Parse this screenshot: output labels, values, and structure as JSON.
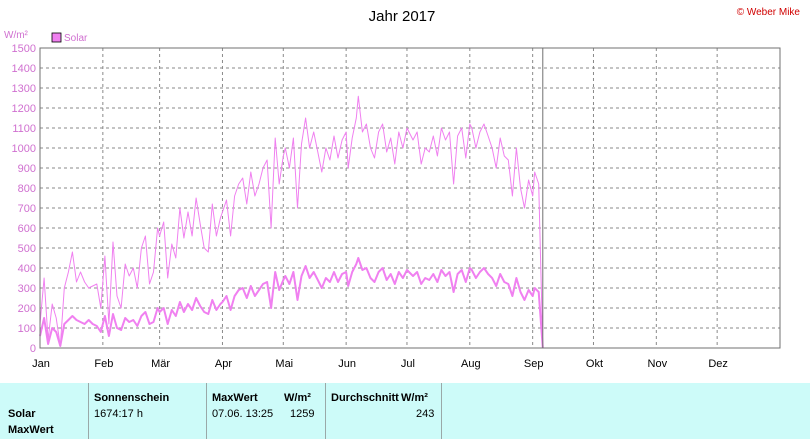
{
  "copyright": "© Weber Mike",
  "legend": {
    "label": "Solar",
    "color": "#f080f0"
  },
  "chart_data": {
    "type": "line",
    "title": "Jahr 2017",
    "ylabel": "W/m²",
    "ylim": [
      0,
      1500
    ],
    "yticks": [
      0,
      100,
      200,
      300,
      400,
      500,
      600,
      700,
      800,
      900,
      1000,
      1100,
      1200,
      1300,
      1400,
      1500
    ],
    "xlim_days": [
      1,
      366
    ],
    "months": [
      "Jan",
      "Feb",
      "Mär",
      "Apr",
      "Mai",
      "Jun",
      "Jul",
      "Aug",
      "Sep",
      "Okt",
      "Nov",
      "Dez"
    ],
    "grid": true,
    "line_color": "#f080f0",
    "cursor_day": 249,
    "series": [
      {
        "name": "Solar MaxWert",
        "unit": "W/m²",
        "points": [
          [
            1,
            120
          ],
          [
            3,
            350
          ],
          [
            5,
            40
          ],
          [
            7,
            220
          ],
          [
            9,
            150
          ],
          [
            11,
            10
          ],
          [
            13,
            300
          ],
          [
            15,
            380
          ],
          [
            17,
            480
          ],
          [
            19,
            330
          ],
          [
            21,
            380
          ],
          [
            23,
            330
          ],
          [
            25,
            300
          ],
          [
            27,
            310
          ],
          [
            29,
            320
          ],
          [
            31,
            200
          ],
          [
            33,
            460
          ],
          [
            35,
            120
          ],
          [
            37,
            530
          ],
          [
            39,
            260
          ],
          [
            41,
            200
          ],
          [
            43,
            420
          ],
          [
            45,
            360
          ],
          [
            47,
            400
          ],
          [
            49,
            300
          ],
          [
            51,
            500
          ],
          [
            53,
            560
          ],
          [
            55,
            320
          ],
          [
            57,
            380
          ],
          [
            59,
            600
          ],
          [
            60,
            560
          ],
          [
            62,
            630
          ],
          [
            64,
            350
          ],
          [
            66,
            520
          ],
          [
            68,
            450
          ],
          [
            70,
            700
          ],
          [
            72,
            550
          ],
          [
            74,
            680
          ],
          [
            76,
            560
          ],
          [
            78,
            750
          ],
          [
            80,
            620
          ],
          [
            82,
            500
          ],
          [
            84,
            480
          ],
          [
            86,
            720
          ],
          [
            88,
            560
          ],
          [
            90,
            650
          ],
          [
            91,
            680
          ],
          [
            93,
            740
          ],
          [
            95,
            560
          ],
          [
            97,
            760
          ],
          [
            99,
            820
          ],
          [
            101,
            850
          ],
          [
            103,
            720
          ],
          [
            105,
            880
          ],
          [
            107,
            760
          ],
          [
            109,
            820
          ],
          [
            111,
            900
          ],
          [
            113,
            940
          ],
          [
            115,
            600
          ],
          [
            117,
            1050
          ],
          [
            119,
            820
          ],
          [
            121,
            960
          ],
          [
            122,
            1000
          ],
          [
            124,
            900
          ],
          [
            126,
            1050
          ],
          [
            128,
            700
          ],
          [
            130,
            1020
          ],
          [
            132,
            1150
          ],
          [
            134,
            1000
          ],
          [
            136,
            1080
          ],
          [
            138,
            980
          ],
          [
            140,
            880
          ],
          [
            142,
            1000
          ],
          [
            144,
            940
          ],
          [
            146,
            1060
          ],
          [
            148,
            950
          ],
          [
            150,
            1040
          ],
          [
            152,
            1080
          ],
          [
            153,
            900
          ],
          [
            155,
            1050
          ],
          [
            157,
            1150
          ],
          [
            158,
            1259
          ],
          [
            160,
            1080
          ],
          [
            162,
            1120
          ],
          [
            164,
            1000
          ],
          [
            166,
            950
          ],
          [
            168,
            1080
          ],
          [
            170,
            1120
          ],
          [
            172,
            980
          ],
          [
            174,
            1050
          ],
          [
            176,
            920
          ],
          [
            178,
            1080
          ],
          [
            180,
            1000
          ],
          [
            182,
            1100
          ],
          [
            183,
            1080
          ],
          [
            185,
            1040
          ],
          [
            187,
            1080
          ],
          [
            189,
            920
          ],
          [
            191,
            1000
          ],
          [
            193,
            980
          ],
          [
            195,
            1060
          ],
          [
            197,
            960
          ],
          [
            199,
            1100
          ],
          [
            201,
            1040
          ],
          [
            203,
            1080
          ],
          [
            205,
            820
          ],
          [
            207,
            1060
          ],
          [
            209,
            1100
          ],
          [
            211,
            950
          ],
          [
            213,
            1120
          ],
          [
            214,
            1100
          ],
          [
            216,
            1000
          ],
          [
            218,
            1080
          ],
          [
            220,
            1120
          ],
          [
            222,
            1060
          ],
          [
            224,
            1000
          ],
          [
            226,
            900
          ],
          [
            228,
            1050
          ],
          [
            230,
            960
          ],
          [
            232,
            940
          ],
          [
            234,
            760
          ],
          [
            236,
            1000
          ],
          [
            238,
            800
          ],
          [
            240,
            700
          ],
          [
            242,
            840
          ],
          [
            244,
            760
          ],
          [
            245,
            880
          ],
          [
            247,
            820
          ],
          [
            249,
            0
          ]
        ]
      },
      {
        "name": "Solar Durchschnitt",
        "unit": "W/m²",
        "points": [
          [
            1,
            60
          ],
          [
            3,
            150
          ],
          [
            5,
            20
          ],
          [
            7,
            100
          ],
          [
            9,
            80
          ],
          [
            11,
            10
          ],
          [
            13,
            120
          ],
          [
            15,
            140
          ],
          [
            17,
            160
          ],
          [
            19,
            140
          ],
          [
            21,
            130
          ],
          [
            23,
            120
          ],
          [
            25,
            140
          ],
          [
            27,
            120
          ],
          [
            29,
            110
          ],
          [
            31,
            80
          ],
          [
            33,
            160
          ],
          [
            35,
            60
          ],
          [
            37,
            170
          ],
          [
            39,
            100
          ],
          [
            41,
            90
          ],
          [
            43,
            150
          ],
          [
            45,
            130
          ],
          [
            47,
            140
          ],
          [
            49,
            110
          ],
          [
            51,
            160
          ],
          [
            53,
            180
          ],
          [
            55,
            120
          ],
          [
            57,
            130
          ],
          [
            59,
            200
          ],
          [
            60,
            180
          ],
          [
            62,
            200
          ],
          [
            64,
            120
          ],
          [
            66,
            190
          ],
          [
            68,
            160
          ],
          [
            70,
            230
          ],
          [
            72,
            180
          ],
          [
            74,
            220
          ],
          [
            76,
            190
          ],
          [
            78,
            250
          ],
          [
            80,
            210
          ],
          [
            82,
            180
          ],
          [
            84,
            170
          ],
          [
            86,
            240
          ],
          [
            88,
            190
          ],
          [
            90,
            220
          ],
          [
            91,
            230
          ],
          [
            93,
            260
          ],
          [
            95,
            190
          ],
          [
            97,
            260
          ],
          [
            99,
            290
          ],
          [
            101,
            300
          ],
          [
            103,
            250
          ],
          [
            105,
            310
          ],
          [
            107,
            260
          ],
          [
            109,
            290
          ],
          [
            111,
            320
          ],
          [
            113,
            330
          ],
          [
            115,
            200
          ],
          [
            117,
            380
          ],
          [
            119,
            290
          ],
          [
            121,
            340
          ],
          [
            122,
            360
          ],
          [
            124,
            320
          ],
          [
            126,
            380
          ],
          [
            128,
            240
          ],
          [
            130,
            360
          ],
          [
            132,
            410
          ],
          [
            134,
            350
          ],
          [
            136,
            380
          ],
          [
            138,
            340
          ],
          [
            140,
            300
          ],
          [
            142,
            350
          ],
          [
            144,
            330
          ],
          [
            146,
            380
          ],
          [
            148,
            330
          ],
          [
            150,
            370
          ],
          [
            152,
            380
          ],
          [
            153,
            310
          ],
          [
            155,
            380
          ],
          [
            157,
            420
          ],
          [
            158,
            450
          ],
          [
            160,
            390
          ],
          [
            162,
            400
          ],
          [
            164,
            350
          ],
          [
            166,
            330
          ],
          [
            168,
            380
          ],
          [
            170,
            400
          ],
          [
            172,
            340
          ],
          [
            174,
            370
          ],
          [
            176,
            320
          ],
          [
            178,
            380
          ],
          [
            180,
            350
          ],
          [
            182,
            390
          ],
          [
            183,
            380
          ],
          [
            185,
            360
          ],
          [
            187,
            380
          ],
          [
            189,
            320
          ],
          [
            191,
            350
          ],
          [
            193,
            340
          ],
          [
            195,
            370
          ],
          [
            197,
            330
          ],
          [
            199,
            390
          ],
          [
            201,
            360
          ],
          [
            203,
            380
          ],
          [
            205,
            280
          ],
          [
            207,
            370
          ],
          [
            209,
            390
          ],
          [
            211,
            330
          ],
          [
            213,
            400
          ],
          [
            214,
            390
          ],
          [
            216,
            350
          ],
          [
            218,
            380
          ],
          [
            220,
            400
          ],
          [
            222,
            370
          ],
          [
            224,
            350
          ],
          [
            226,
            310
          ],
          [
            228,
            370
          ],
          [
            230,
            330
          ],
          [
            232,
            320
          ],
          [
            234,
            260
          ],
          [
            236,
            350
          ],
          [
            238,
            280
          ],
          [
            240,
            240
          ],
          [
            242,
            290
          ],
          [
            244,
            260
          ],
          [
            245,
            300
          ],
          [
            247,
            280
          ],
          [
            249,
            0
          ]
        ]
      }
    ]
  },
  "info_table": {
    "row_label_1": "Solar",
    "row_label_2": "MaxWert",
    "col_sun_header": "Sonnenschein",
    "col_sun_value": "1674:17 h",
    "col_max_header": "MaxWert",
    "col_max_unit": "W/m²",
    "col_max_time": "07.06.  13:25",
    "col_max_value": "1259",
    "col_avg_header": "Durchschnitt",
    "col_avg_unit": "W/m²",
    "col_avg_value": "243"
  }
}
